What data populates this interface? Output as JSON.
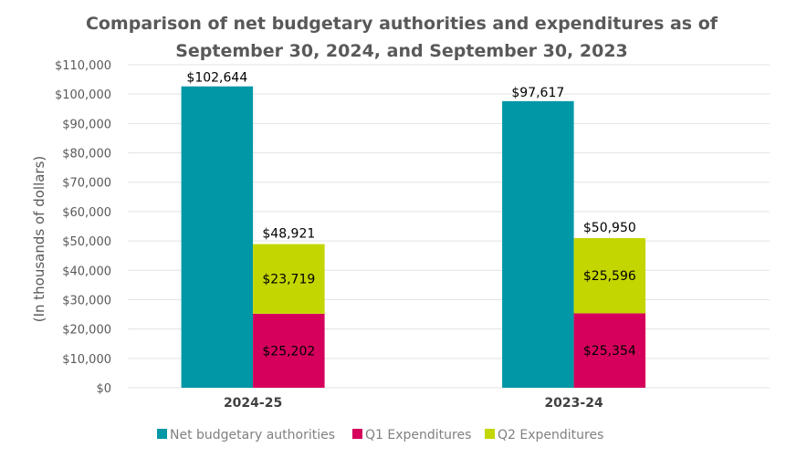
{
  "chart_data": {
    "type": "bar",
    "stacked_groups": true,
    "title_lines": [
      "Comparison of net budgetary authorities and expenditures as of",
      "September 30, 2024, and September 30, 2023"
    ],
    "xlabel": "",
    "ylabel": "(In thousands of dollars)",
    "ylim": [
      0,
      110000
    ],
    "ytick_step": 10000,
    "ytick_labels": [
      "$0",
      "$10,000",
      "$20,000",
      "$30,000",
      "$40,000",
      "$50,000",
      "$60,000",
      "$70,000",
      "$80,000",
      "$90,000",
      "$100,000",
      "$110,000"
    ],
    "grid": true,
    "categories": [
      "2024-25",
      "2023-24"
    ],
    "series": [
      {
        "name": "Net budgetary authorities",
        "color": "#0097A7",
        "stack": "authorities",
        "values": [
          102644,
          97617
        ],
        "labels": [
          "$102,644",
          "$97,617"
        ]
      },
      {
        "name": "Q1 Expenditures",
        "color": "#D6005C",
        "stack": "expenditures",
        "values": [
          25202,
          25354
        ],
        "labels": [
          "$25,202",
          "$25,354"
        ]
      },
      {
        "name": "Q2 Expenditures",
        "color": "#C4D600",
        "stack": "expenditures",
        "values": [
          23719,
          25596
        ],
        "labels": [
          "$23,719",
          "$25,596"
        ]
      }
    ],
    "stack_totals": {
      "expenditures": {
        "values": [
          48921,
          50950
        ],
        "labels": [
          "$48,921",
          "$50,950"
        ]
      }
    },
    "legend_position": "bottom"
  }
}
